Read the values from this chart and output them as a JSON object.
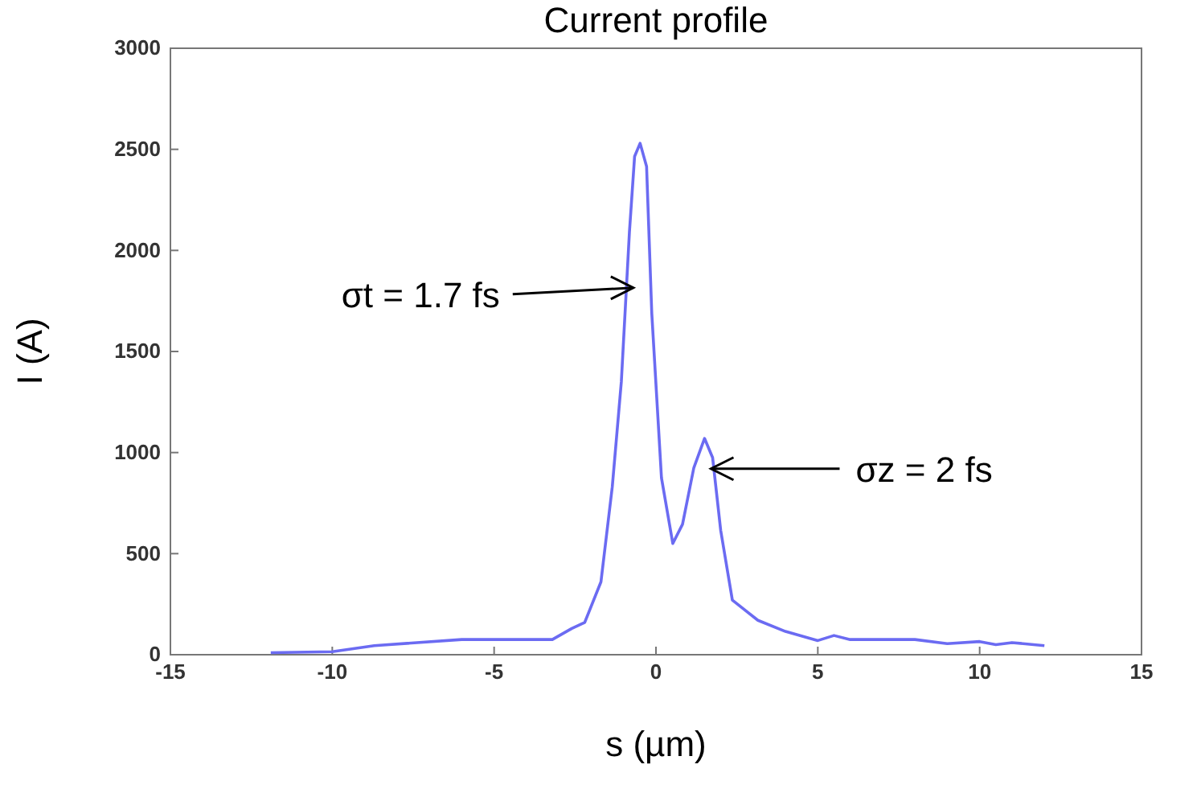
{
  "chart_data": {
    "type": "line",
    "title": "Current profile",
    "xlabel": "s (µm)",
    "ylabel": "I (A)",
    "xlim": [
      -15,
      15
    ],
    "xticks": [
      -15,
      -10,
      -5,
      0,
      5,
      10,
      15
    ],
    "ylim": [
      0,
      3000
    ],
    "yticks": [
      0,
      500,
      1000,
      1500,
      2000,
      2500,
      3000
    ],
    "grid": false,
    "marker": "none",
    "line_style": "solid",
    "series": [
      {
        "color": "#6b6bf2",
        "x": [
          -11.9,
          -10,
          -8.7,
          -6,
          -3.2,
          -2.6,
          -2.2,
          -1.7,
          -1.35,
          -1.07,
          -0.82,
          -0.66,
          -0.49,
          -0.29,
          -0.13,
          0.17,
          0.52,
          0.82,
          1.17,
          1.5,
          1.75,
          2.0,
          2.36,
          3.15,
          4.0,
          5.0,
          5.5,
          6,
          7,
          8,
          9,
          10,
          10.5,
          11,
          12
        ],
        "values": [
          10,
          15,
          45,
          75,
          75,
          130,
          160,
          360,
          830,
          1350,
          2090,
          2465,
          2530,
          2415,
          1690,
          875,
          550,
          645,
          925,
          1070,
          975,
          615,
          270,
          170,
          115,
          70,
          95,
          75,
          75,
          75,
          55,
          65,
          50,
          60,
          45
        ]
      }
    ],
    "annotations": [
      {
        "text": "σt = 1.7 fs",
        "x": -0.7,
        "y": 1815
      },
      {
        "text": "σz = 2 fs",
        "x": 1.7,
        "y": 920
      }
    ]
  }
}
